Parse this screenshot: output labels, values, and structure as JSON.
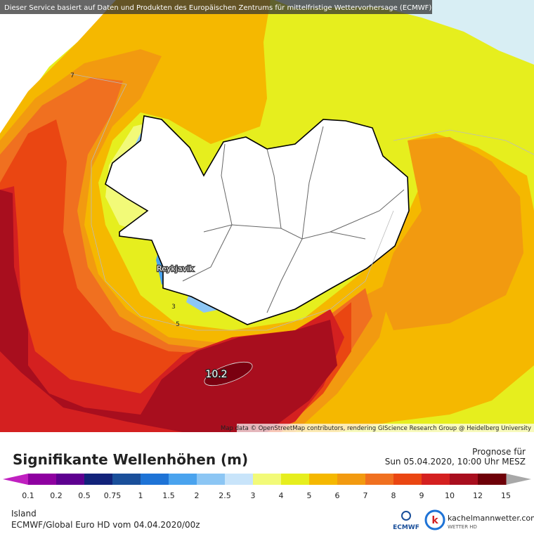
{
  "banner": "Dieser Service basiert auf Daten und Produkten des Europäischen Zentrums für mittelfristige Wettervorhersage (ECMWF)",
  "map": {
    "place_label": "Reykjavik",
    "contour_labels": [
      "7",
      "3",
      "5"
    ],
    "max_label": "10.2",
    "attribution": "Map data © OpenStreetMap contributors, rendering GIScience Research Group @ Heidelberg University"
  },
  "legend": {
    "title": "Signifikante Wellenhöhen (m)",
    "forecast_label": "Prognose für",
    "forecast_time": "Sun 05.04.2020, 10:00 Uhr MESZ",
    "ticks": [
      "0.1",
      "0.2",
      "0.5",
      "0.75",
      "1",
      "1.5",
      "2",
      "2.5",
      "3",
      "4",
      "5",
      "6",
      "7",
      "8",
      "9",
      "10",
      "12",
      "15"
    ],
    "colors": [
      "#8e00a0",
      "#5e0090",
      "#12237a",
      "#1a4f9a",
      "#1e73d6",
      "#4aa3ee",
      "#8cc6f4",
      "#c8e4fa",
      "#f2fa78",
      "#e6ee1e",
      "#f5b800",
      "#f29a10",
      "#f07020",
      "#ea4612",
      "#d42020",
      "#a80e1e",
      "#6e0008"
    ],
    "under_color": "#c020c0",
    "over_color": "#a8a8a8"
  },
  "footer": {
    "region": "Island",
    "model": "ECMWF/Global Euro HD vom  04.04.2020/00z",
    "ecmwf_logo": "ECMWF",
    "brand": "kachelmannwetter.com",
    "brand_sub": "WETTER HD"
  }
}
